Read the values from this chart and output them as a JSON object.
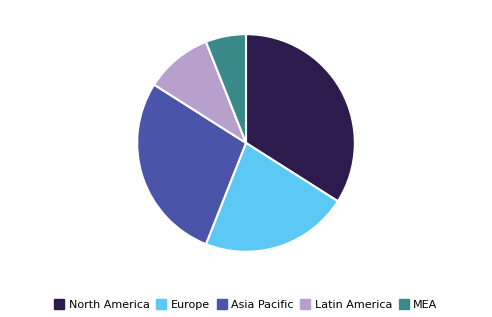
{
  "labels": [
    "North America",
    "Europe",
    "Asia Pacific",
    "Latin America",
    "MEA"
  ],
  "values": [
    34,
    22,
    28,
    10,
    6
  ],
  "colors": [
    "#2d1b4e",
    "#5bc8f5",
    "#4a54a8",
    "#b8a0cc",
    "#3a8a8a"
  ],
  "startangle": 90,
  "counterclock": false,
  "legend_fontsize": 8,
  "figsize": [
    4.92,
    3.17
  ],
  "dpi": 100,
  "edge_color": "white",
  "edge_linewidth": 1.5
}
